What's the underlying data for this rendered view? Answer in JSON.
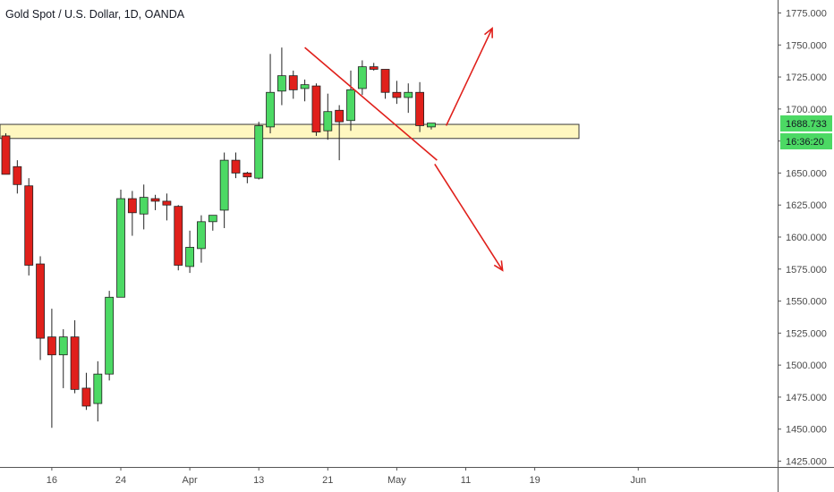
{
  "header": {
    "title": "Gold Spot / U.S. Dollar, 1D, OANDA"
  },
  "colors": {
    "up": "#4cd964",
    "down": "#e0201b",
    "zone_fill": "#fff7c0",
    "zone_stroke": "#3a3a3a",
    "annotation": "#e0201b",
    "price_tag": "#4cd964",
    "axis_text": "#4a4a4a"
  },
  "price_tags": {
    "last_price": "1688.733",
    "countdown": "16:36:20"
  },
  "chart_data": {
    "type": "candlestick",
    "title": "Gold Spot / U.S. Dollar, 1D, OANDA",
    "ylim": [
      1420,
      1780
    ],
    "y_ticks": [
      "1775.000",
      "1750.000",
      "1725.000",
      "1700.000",
      "1675.000",
      "1650.000",
      "1625.000",
      "1600.000",
      "1575.000",
      "1550.000",
      "1525.000",
      "1500.000",
      "1475.000",
      "1450.000",
      "1425.000"
    ],
    "x_ticks": [
      "16",
      "24",
      "Apr",
      "13",
      "21",
      "May",
      "11",
      "19",
      "Jun"
    ],
    "x_tick_bars": [
      4,
      10,
      16,
      22,
      28,
      34,
      40,
      46,
      55
    ],
    "support_zone": [
      1677,
      1688
    ],
    "candles": [
      {
        "o": 1679,
        "h": 1681,
        "l": 1649,
        "c": 1649
      },
      {
        "o": 1655,
        "h": 1660,
        "l": 1634,
        "c": 1641
      },
      {
        "o": 1640,
        "h": 1646,
        "l": 1570,
        "c": 1578
      },
      {
        "o": 1579,
        "h": 1585,
        "l": 1504,
        "c": 1521
      },
      {
        "o": 1522,
        "h": 1544,
        "l": 1451,
        "c": 1508
      },
      {
        "o": 1508,
        "h": 1528,
        "l": 1482,
        "c": 1522
      },
      {
        "o": 1522,
        "h": 1535,
        "l": 1478,
        "c": 1481
      },
      {
        "o": 1482,
        "h": 1494,
        "l": 1465,
        "c": 1468
      },
      {
        "o": 1470,
        "h": 1503,
        "l": 1456,
        "c": 1493
      },
      {
        "o": 1493,
        "h": 1558,
        "l": 1488,
        "c": 1553
      },
      {
        "o": 1553,
        "h": 1637,
        "l": 1553,
        "c": 1630
      },
      {
        "o": 1630,
        "h": 1636,
        "l": 1601,
        "c": 1619
      },
      {
        "o": 1618,
        "h": 1641,
        "l": 1606,
        "c": 1631
      },
      {
        "o": 1630,
        "h": 1633,
        "l": 1621,
        "c": 1628
      },
      {
        "o": 1628,
        "h": 1634,
        "l": 1613,
        "c": 1625
      },
      {
        "o": 1624,
        "h": 1625,
        "l": 1574,
        "c": 1578
      },
      {
        "o": 1577,
        "h": 1605,
        "l": 1572,
        "c": 1592
      },
      {
        "o": 1591,
        "h": 1617,
        "l": 1580,
        "c": 1612
      },
      {
        "o": 1612,
        "h": 1617,
        "l": 1605,
        "c": 1617
      },
      {
        "o": 1621,
        "h": 1666,
        "l": 1607,
        "c": 1660
      },
      {
        "o": 1660,
        "h": 1666,
        "l": 1646,
        "c": 1650
      },
      {
        "o": 1650,
        "h": 1651,
        "l": 1642,
        "c": 1647
      },
      {
        "o": 1646,
        "h": 1690,
        "l": 1645,
        "c": 1687
      },
      {
        "o": 1686,
        "h": 1743,
        "l": 1681,
        "c": 1713
      },
      {
        "o": 1714,
        "h": 1748,
        "l": 1703,
        "c": 1726
      },
      {
        "o": 1726,
        "h": 1730,
        "l": 1708,
        "c": 1715
      },
      {
        "o": 1716,
        "h": 1723,
        "l": 1706,
        "c": 1719
      },
      {
        "o": 1718,
        "h": 1720,
        "l": 1679,
        "c": 1682
      },
      {
        "o": 1683,
        "h": 1712,
        "l": 1676,
        "c": 1698
      },
      {
        "o": 1699,
        "h": 1703,
        "l": 1660,
        "c": 1690
      },
      {
        "o": 1691,
        "h": 1730,
        "l": 1683,
        "c": 1715
      },
      {
        "o": 1716,
        "h": 1738,
        "l": 1711,
        "c": 1733
      },
      {
        "o": 1733,
        "h": 1736,
        "l": 1730,
        "c": 1731
      },
      {
        "o": 1731,
        "h": 1731,
        "l": 1708,
        "c": 1713
      },
      {
        "o": 1713,
        "h": 1722,
        "l": 1704,
        "c": 1709
      },
      {
        "o": 1709,
        "h": 1720,
        "l": 1697,
        "c": 1713
      },
      {
        "o": 1713,
        "h": 1721,
        "l": 1682,
        "c": 1687
      },
      {
        "o": 1686,
        "h": 1689,
        "l": 1684,
        "c": 1689
      }
    ],
    "annotations": {
      "trendline": [
        [
          26,
          1748
        ],
        [
          37.5,
          1660
        ]
      ],
      "arrow_up": [
        [
          38.3,
          1687
        ],
        [
          42.3,
          1763
        ]
      ],
      "arrow_down": [
        [
          37.3,
          1657
        ],
        [
          43.2,
          1574
        ]
      ]
    }
  }
}
